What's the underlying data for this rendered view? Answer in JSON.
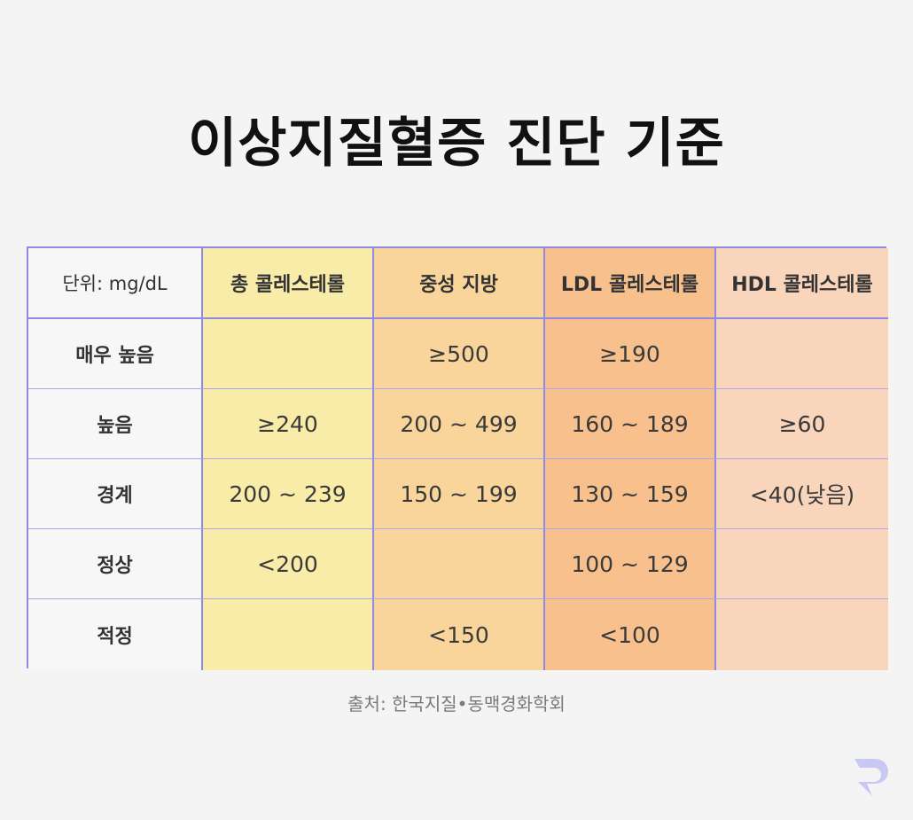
{
  "title": "이상지질혈증 진단 기준",
  "table": {
    "unit_label": "단위: mg/dL",
    "columns": [
      "총 콜레스테롤",
      "중성 지방",
      "LDL 콜레스테롤",
      "HDL 콜레스테롤"
    ],
    "rows": [
      {
        "label": "매우 높음",
        "cells": [
          "",
          "≥500",
          "≥190",
          ""
        ]
      },
      {
        "label": "높음",
        "cells": [
          "≥240",
          "200 ~ 499",
          "160 ~ 189",
          "≥60"
        ]
      },
      {
        "label": "경계",
        "cells": [
          "200 ~ 239",
          "150 ~ 199",
          "130 ~ 159",
          "<40(낮음)"
        ]
      },
      {
        "label": "정상",
        "cells": [
          "<200",
          "",
          "100 ~ 129",
          ""
        ]
      },
      {
        "label": "적정",
        "cells": [
          "",
          "<150",
          "<100",
          ""
        ]
      }
    ],
    "column_colors": [
      "#f9eba8",
      "#f9d59c",
      "#f8c08c",
      "#f9d5bb"
    ]
  },
  "source": "출처: 한국지질•동맥경화학회",
  "logo_icon": "brand-logo-icon"
}
